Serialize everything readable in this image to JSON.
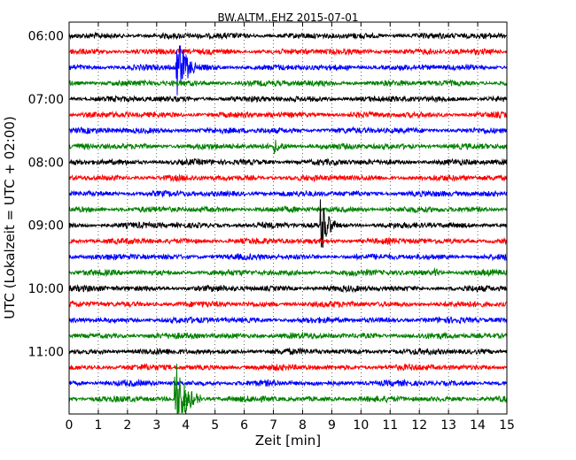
{
  "chart_data": {
    "type": "line",
    "title": "BW.ALTM..EHZ 2015-07-01",
    "xlabel": "Zeit  [min]",
    "ylabel": "UTC (Lokalzeit = UTC + 02:00)",
    "xlim": [
      0,
      15
    ],
    "x_ticks": [
      "0",
      "1",
      "2",
      "3",
      "4",
      "5",
      "6",
      "7",
      "8",
      "9",
      "10",
      "11",
      "12",
      "13",
      "14",
      "15"
    ],
    "y_tick_labels": [
      "06:00",
      "07:00",
      "08:00",
      "09:00",
      "10:00",
      "11:00"
    ],
    "y_tick_rows": [
      0,
      4,
      8,
      12,
      16,
      20
    ],
    "grid": "vertical dotted at each minute",
    "trace_colors": [
      "#000000",
      "#ff0000",
      "#0000ff",
      "#008000"
    ],
    "rows": [
      {
        "start": "06:00",
        "color": "#000000"
      },
      {
        "start": "06:15",
        "color": "#ff0000"
      },
      {
        "start": "06:30",
        "color": "#0000ff",
        "events": [
          {
            "t_min": 3.65,
            "amp": 1.0,
            "dur_min": 0.7
          }
        ]
      },
      {
        "start": "06:45",
        "color": "#008000"
      },
      {
        "start": "07:00",
        "color": "#000000"
      },
      {
        "start": "07:15",
        "color": "#ff0000"
      },
      {
        "start": "07:30",
        "color": "#0000ff"
      },
      {
        "start": "07:45",
        "color": "#008000",
        "events": [
          {
            "t_min": 7.0,
            "amp": 0.18,
            "dur_min": 0.6
          }
        ]
      },
      {
        "start": "08:00",
        "color": "#000000"
      },
      {
        "start": "08:15",
        "color": "#ff0000"
      },
      {
        "start": "08:30",
        "color": "#0000ff"
      },
      {
        "start": "08:45",
        "color": "#008000"
      },
      {
        "start": "09:00",
        "color": "#000000",
        "events": [
          {
            "t_min": 8.6,
            "amp": 0.7,
            "dur_min": 0.6
          }
        ]
      },
      {
        "start": "09:15",
        "color": "#ff0000"
      },
      {
        "start": "09:30",
        "color": "#0000ff"
      },
      {
        "start": "09:45",
        "color": "#008000",
        "events": [
          {
            "t_min": 12.5,
            "amp": 0.12,
            "dur_min": 0.3
          }
        ]
      },
      {
        "start": "10:00",
        "color": "#000000"
      },
      {
        "start": "10:15",
        "color": "#ff0000"
      },
      {
        "start": "10:30",
        "color": "#0000ff"
      },
      {
        "start": "10:45",
        "color": "#008000"
      },
      {
        "start": "11:00",
        "color": "#000000"
      },
      {
        "start": "11:15",
        "color": "#ff0000"
      },
      {
        "start": "11:30",
        "color": "#0000ff"
      },
      {
        "start": "11:45",
        "color": "#008000",
        "events": [
          {
            "t_min": 3.6,
            "amp": 1.0,
            "dur_min": 0.9
          }
        ]
      }
    ]
  }
}
